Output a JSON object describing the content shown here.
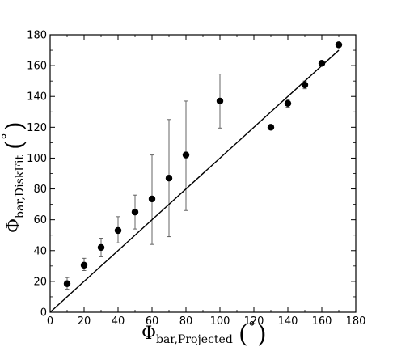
{
  "chart_data": {
    "type": "scatter",
    "title": "",
    "xlabel": {
      "symbol": "Φ",
      "subscript": "bar,Projected",
      "unit": "°"
    },
    "ylabel": {
      "symbol": "Φ",
      "subscript": "bar,DiskFit",
      "unit": "°"
    },
    "xlim": [
      0,
      180
    ],
    "ylim": [
      0,
      180
    ],
    "xticks": [
      0,
      20,
      40,
      60,
      80,
      100,
      120,
      140,
      160,
      180
    ],
    "yticks": [
      0,
      20,
      40,
      60,
      80,
      100,
      120,
      140,
      160,
      180
    ],
    "grid": false,
    "legend": "none",
    "series": [
      {
        "kind": "points-with-errorbars",
        "color": "#000000",
        "points": [
          {
            "x": 10,
            "y": 18.5,
            "ylow": 15.0,
            "yhigh": 22.5
          },
          {
            "x": 20,
            "y": 30.5,
            "ylow": 27.0,
            "yhigh": 35.0
          },
          {
            "x": 30,
            "y": 42.0,
            "ylow": 36.0,
            "yhigh": 48.0
          },
          {
            "x": 40,
            "y": 53.0,
            "ylow": 45.0,
            "yhigh": 62.0
          },
          {
            "x": 50,
            "y": 65.0,
            "ylow": 54.0,
            "yhigh": 76.0
          },
          {
            "x": 60,
            "y": 73.5,
            "ylow": 44.0,
            "yhigh": 102.0
          },
          {
            "x": 70,
            "y": 87.0,
            "ylow": 49.0,
            "yhigh": 125.0
          },
          {
            "x": 80,
            "y": 102.0,
            "ylow": 66.0,
            "yhigh": 137.0
          },
          {
            "x": 100,
            "y": 137.0,
            "ylow": 119.5,
            "yhigh": 154.5
          },
          {
            "x": 130,
            "y": 120.0,
            "ylow": 119.0,
            "yhigh": 121.0
          },
          {
            "x": 140,
            "y": 135.5,
            "ylow": 133.0,
            "yhigh": 138.0
          },
          {
            "x": 150,
            "y": 147.5,
            "ylow": 145.0,
            "yhigh": 150.0
          },
          {
            "x": 160,
            "y": 161.5,
            "ylow": 160.0,
            "yhigh": 163.0
          },
          {
            "x": 170,
            "y": 173.5,
            "ylow": 172.5,
            "yhigh": 174.5
          }
        ]
      },
      {
        "kind": "line",
        "color": "#000000",
        "x": [
          0,
          170
        ],
        "y": [
          0,
          170
        ]
      }
    ]
  }
}
